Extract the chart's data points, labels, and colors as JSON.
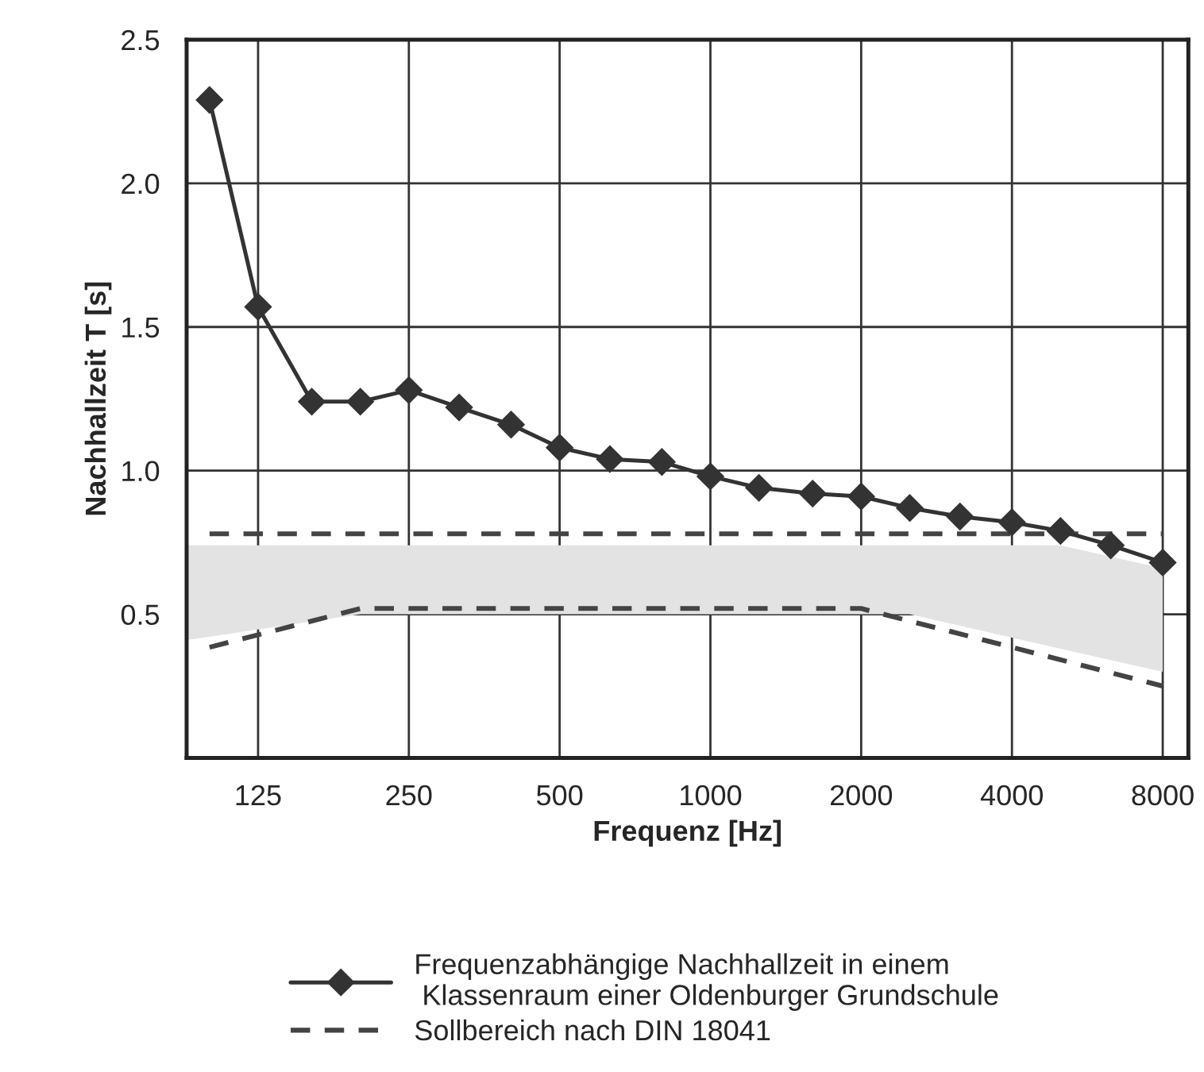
{
  "chart_data": {
    "type": "line",
    "xlabel": "Frequenz [Hz]",
    "ylabel": "Nachhallzeit T [s]",
    "log": "x",
    "xlim": [
      90,
      9000
    ],
    "xticks": [
      125,
      250,
      500,
      1000,
      2000,
      4000,
      8000
    ],
    "ylim": [
      0,
      2.5
    ],
    "yticks": [
      {
        "value": 0.5,
        "label": "0.5"
      },
      {
        "value": 1.0,
        "label": "1.0"
      },
      {
        "value": 1.5,
        "label": "1.5"
      },
      {
        "value": 2.0,
        "label": "2.0"
      },
      {
        "value": 2.5,
        "label": "2.5"
      }
    ],
    "grid": true,
    "legend": "bottom",
    "series": [
      {
        "type": "area",
        "color": "#e3e3e3",
        "x": [
          90,
          200,
          2500,
          5000,
          8000
        ],
        "values": [
          null,
          null,
          null,
          null,
          null
        ],
        "upper": [
          0.74,
          0.74,
          0.74,
          0.74,
          0.66
        ],
        "lower": [
          0.41,
          0.5,
          0.5,
          0.38,
          0.3
        ]
      },
      {
        "name": "Frequenzabhängige Nachhallzeit in einem\n Klassenraum einer Oldenburger Grundschule",
        "color": "#333333",
        "marker": "diamond",
        "line_style": "solid",
        "x": [
          100,
          125,
          160,
          200,
          250,
          315,
          400,
          500,
          630,
          800,
          1000,
          1250,
          1600,
          2000,
          2500,
          3150,
          4000,
          5000,
          6300,
          8000
        ],
        "values": [
          2.29,
          1.57,
          1.24,
          1.24,
          1.28,
          1.22,
          1.16,
          1.08,
          1.04,
          1.03,
          0.98,
          0.94,
          0.92,
          0.91,
          0.87,
          0.84,
          0.82,
          0.79,
          0.74,
          0.68
        ]
      },
      {
        "name": "Sollbereich nach DIN 18041",
        "color": "#444444",
        "marker": "none",
        "line_style": "dashed",
        "x": [
          100,
          8000
        ],
        "values": [
          0.78,
          0.78
        ]
      },
      {
        "color": "#444444",
        "marker": "none",
        "line_style": "dashed",
        "x": [
          100,
          200,
          2000,
          8000
        ],
        "values": [
          0.385,
          0.52,
          0.52,
          0.25
        ]
      }
    ]
  }
}
